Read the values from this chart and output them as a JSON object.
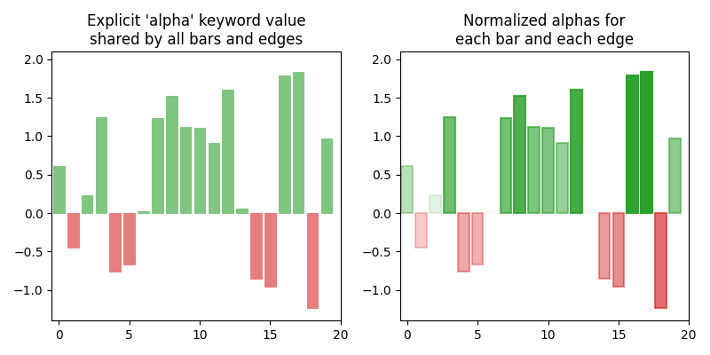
{
  "title1": "Explicit 'alpha' keyword value\nshared by all bars and edges",
  "title2": "Normalized alphas for\neach bar and each edge",
  "ylim": [
    -1.4,
    2.1
  ],
  "uniform_alpha": 0.6,
  "bar_color_pos": "#2ca02c",
  "bar_color_neg": "#d62728",
  "seed": 19680801,
  "n_bars": 20,
  "low": -1.3,
  "high": 2.0
}
